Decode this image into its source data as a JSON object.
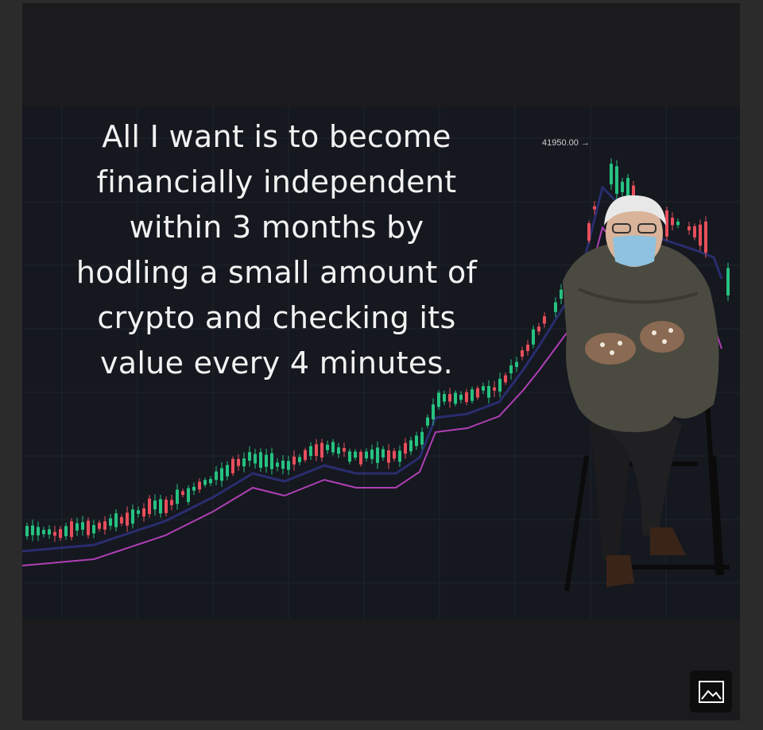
{
  "meme": {
    "caption": "All I want is to become\nfinancially independent\nwithin 3 months by\nhodling a small amount of\ncrypto and checking its\nvalue every 4 minutes.",
    "price_label": "41950.00 →"
  },
  "colors": {
    "background": "#15181f",
    "candle_up": "#26c281",
    "candle_down": "#e84f5b",
    "moving_average": "#b03fb5",
    "band": "#3a3fae"
  },
  "icons": {
    "view_image": "image-icon"
  }
}
